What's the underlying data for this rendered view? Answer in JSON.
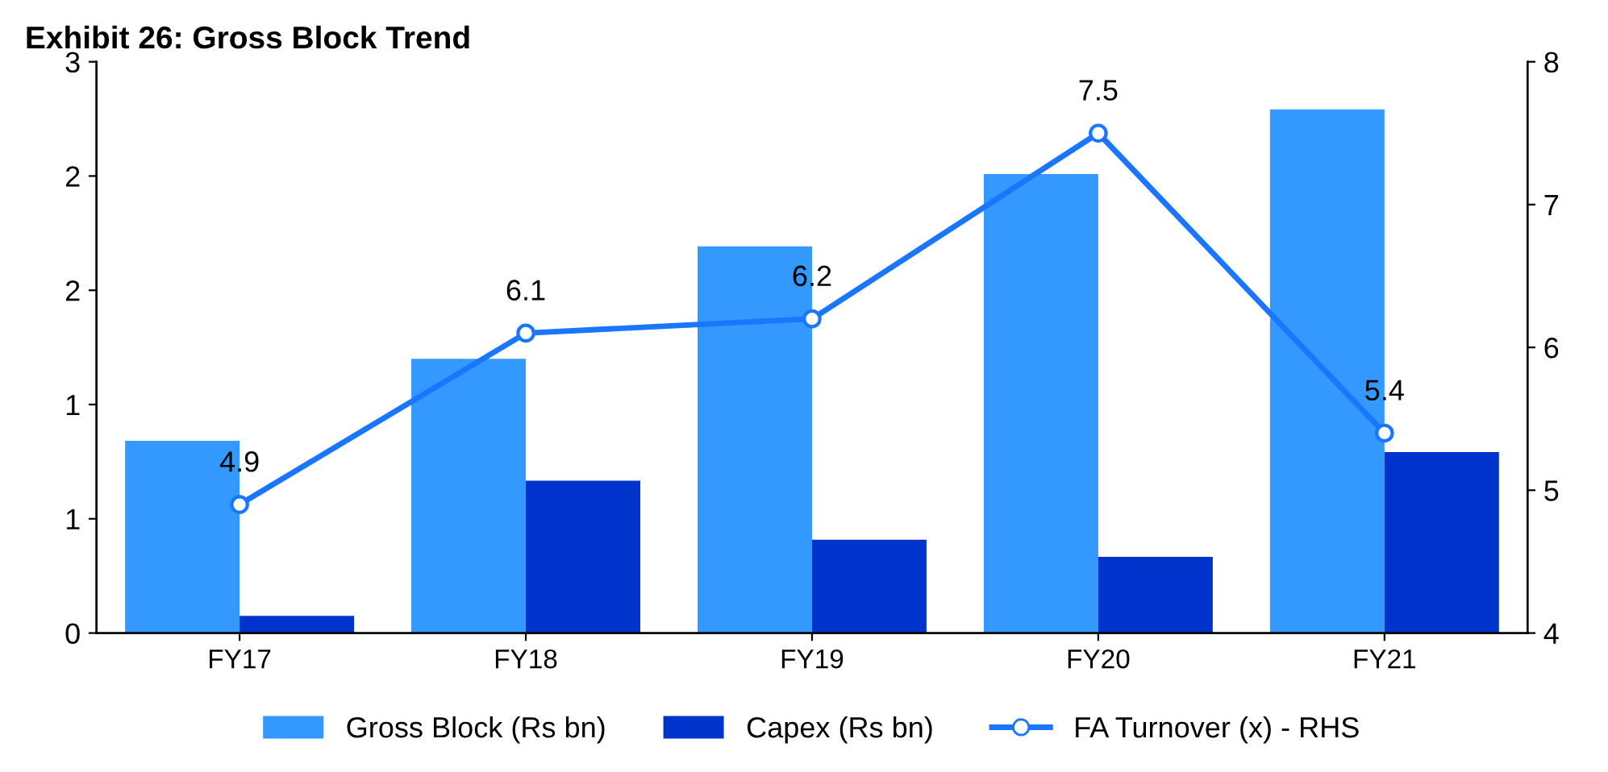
{
  "chart_data": {
    "type": "bar",
    "title": "Exhibit 26: Gross Block Trend",
    "categories": [
      "FY17",
      "FY18",
      "FY19",
      "FY20",
      "FY21"
    ],
    "series": [
      {
        "name": "Gross Block (Rs bn)",
        "color": "#3399ff",
        "values": [
          1.01,
          1.44,
          2.03,
          2.41,
          2.75
        ]
      },
      {
        "name": "Capex (Rs bn)",
        "color": "#0033cc",
        "values": [
          0.09,
          0.8,
          0.49,
          0.4,
          0.95
        ]
      },
      {
        "name": "FA Turnover (x) - RHS",
        "type": "line",
        "axis": "y2",
        "color": "#1a75ff",
        "marker": "circle",
        "values": [
          4.9,
          6.1,
          6.2,
          7.5,
          5.4
        ],
        "value_labels": [
          "4.9",
          "6.1",
          "6.2",
          "7.5",
          "5.4"
        ]
      }
    ],
    "ylim": [
      0,
      3
    ],
    "yticks": [
      0,
      {
        "value": 0.6,
        "label": "1"
      },
      {
        "value": 1.2,
        "label": "1"
      },
      {
        "value": 1.8,
        "label": "2"
      },
      {
        "value": 2.4,
        "label": "2"
      },
      3
    ],
    "y2lim": [
      4,
      8
    ],
    "y2ticks": [
      4,
      5,
      6,
      7,
      8
    ],
    "grid": false,
    "legend": "bottom"
  }
}
